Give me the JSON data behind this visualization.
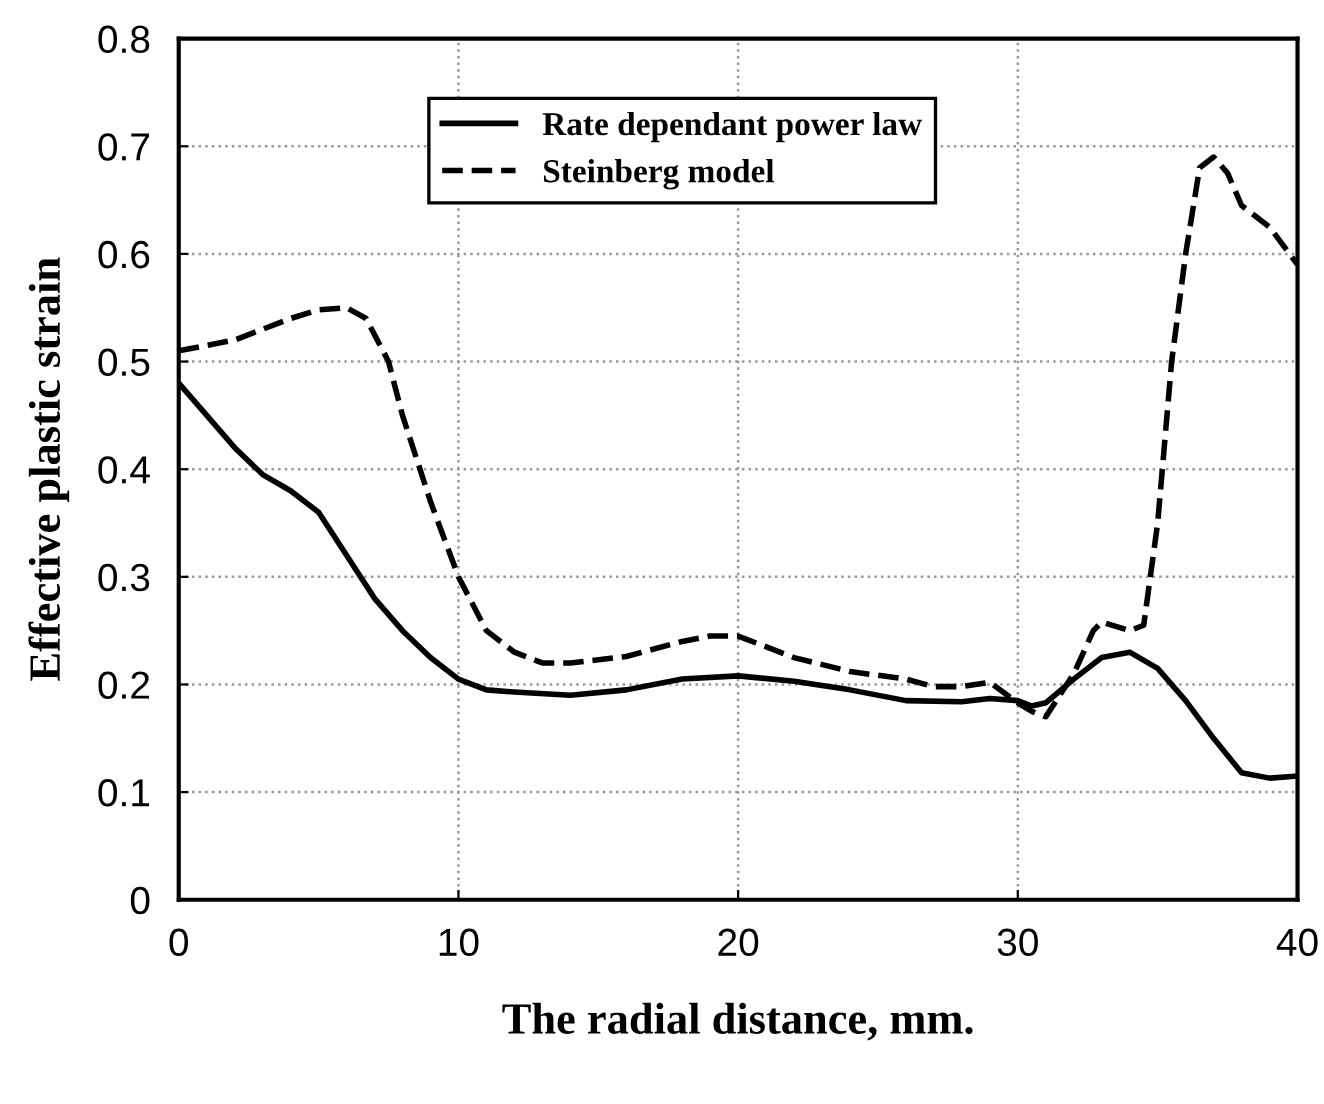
{
  "chart_data": {
    "type": "line",
    "xlabel": "The radial distance, mm.",
    "ylabel": "Effective plastic strain",
    "xlim": [
      0,
      40
    ],
    "ylim": [
      0,
      0.8
    ],
    "xticks": [
      0,
      10,
      20,
      30,
      40
    ],
    "yticks": [
      0,
      0.1,
      0.2,
      0.3,
      0.4,
      0.5,
      0.6,
      0.7,
      0.8
    ],
    "grid": true,
    "legend": "top",
    "marker": "none",
    "series": [
      {
        "name": "Rate dependant power law",
        "color": "#000000",
        "line_style": "solid",
        "x": [
          0,
          2,
          3,
          4,
          5,
          6,
          7,
          8,
          9,
          10,
          11,
          12,
          14,
          16,
          18,
          20,
          22,
          24,
          26,
          28,
          29,
          30,
          30.5,
          31,
          32,
          33,
          34,
          35,
          36,
          37,
          38,
          39,
          40
        ],
        "values": [
          0.48,
          0.42,
          0.395,
          0.38,
          0.36,
          0.32,
          0.28,
          0.25,
          0.225,
          0.205,
          0.195,
          0.193,
          0.19,
          0.195,
          0.205,
          0.208,
          0.203,
          0.195,
          0.185,
          0.184,
          0.187,
          0.185,
          0.18,
          0.183,
          0.205,
          0.225,
          0.23,
          0.215,
          0.185,
          0.15,
          0.118,
          0.113,
          0.115
        ]
      },
      {
        "name": "Steinberg model",
        "color": "#000000",
        "line_style": "dashed",
        "x": [
          0,
          2,
          4,
          5,
          6,
          6.7,
          7.5,
          8,
          9,
          10,
          11,
          12,
          13,
          14,
          16,
          18,
          19,
          20,
          22,
          24,
          26,
          27,
          28,
          29,
          30,
          30.5,
          31,
          32,
          32.7,
          33,
          34,
          34.5,
          35,
          35.5,
          36,
          36.5,
          37,
          37.5,
          38,
          39,
          40
        ],
        "values": [
          0.51,
          0.52,
          0.54,
          0.548,
          0.55,
          0.54,
          0.5,
          0.45,
          0.37,
          0.3,
          0.25,
          0.23,
          0.22,
          0.22,
          0.226,
          0.24,
          0.245,
          0.245,
          0.225,
          0.212,
          0.205,
          0.198,
          0.198,
          0.202,
          0.183,
          0.175,
          0.17,
          0.21,
          0.25,
          0.258,
          0.25,
          0.255,
          0.35,
          0.5,
          0.6,
          0.68,
          0.69,
          0.675,
          0.645,
          0.625,
          0.59
        ]
      }
    ]
  }
}
